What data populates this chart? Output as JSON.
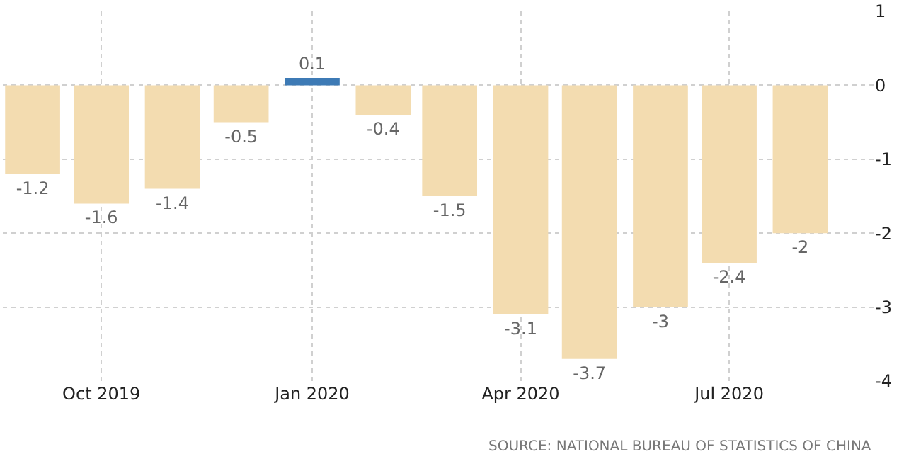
{
  "chart_data": {
    "type": "bar",
    "x": [
      "2019-09-01",
      "2019-10-01",
      "2019-11-01",
      "2019-12-01",
      "2020-01-01",
      "2020-02-01",
      "2020-03-01",
      "2020-04-01",
      "2020-05-01",
      "2020-06-01",
      "2020-07-01",
      "2020-08-01"
    ],
    "values": [
      -1.2,
      -1.6,
      -1.4,
      -0.5,
      0.1,
      -0.4,
      -1.5,
      -3.1,
      -3.7,
      -3,
      -2.4,
      -2
    ],
    "colors": [
      "#f3dcb0",
      "#f3dcb0",
      "#f3dcb0",
      "#f3dcb0",
      "#3d7ab5",
      "#f3dcb0",
      "#f3dcb0",
      "#f3dcb0",
      "#f3dcb0",
      "#f3dcb0",
      "#f3dcb0",
      "#f3dcb0"
    ],
    "data_labels": true,
    "xlim": [
      "2019-08-19",
      "2020-09-02"
    ],
    "xticks": [
      {
        "value": "2019-10-01",
        "label": "Oct 2019"
      },
      {
        "value": "2020-01-01",
        "label": "Jan 2020"
      },
      {
        "value": "2020-04-01",
        "label": "Apr 2020"
      },
      {
        "value": "2020-07-01",
        "label": "Jul 2020"
      }
    ],
    "ylim": [
      -4,
      1
    ],
    "yticks": [
      -4,
      -3,
      -2,
      -1,
      0,
      1
    ],
    "grid": true,
    "legend": false,
    "annotations": [
      "SOURCE: NATIONAL BUREAU OF STATISTICS OF CHINA"
    ]
  }
}
